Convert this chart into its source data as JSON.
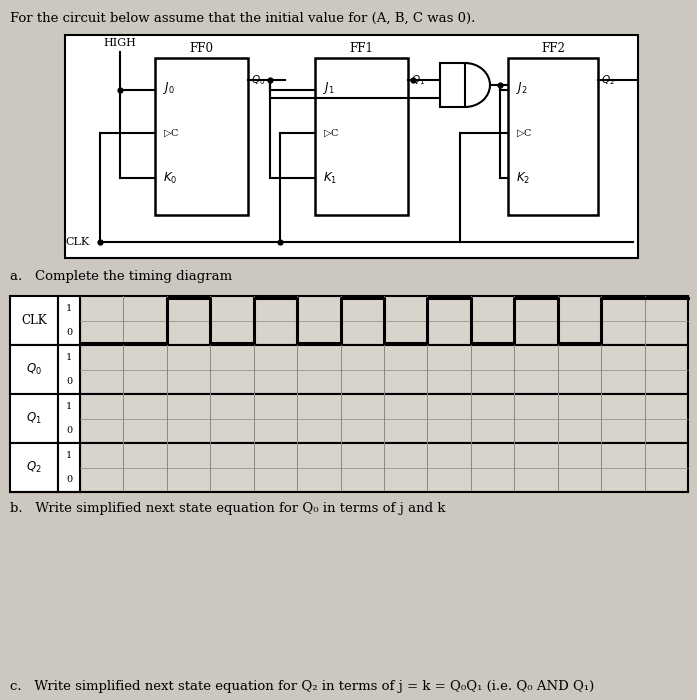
{
  "title_text": "For the circuit below assume that the initial value for (A, B, C was 0).",
  "bg_color": "#ccc8c0",
  "circuit_bg": "white",
  "ff_labels": [
    "FF0",
    "FF1",
    "FF2"
  ],
  "timing_row_labels": [
    "CLK",
    "Q0",
    "Q1",
    "Q2"
  ],
  "question_a": "a.   Complete the timing diagram",
  "question_b": "b.   Write simplified next state equation for Q₀ in terms of j and k",
  "question_c": "c.   Write simplified next state equation for Q₂ in terms of j = k = Q₀Q₁ (i.e. Q₀ AND Q₁)"
}
